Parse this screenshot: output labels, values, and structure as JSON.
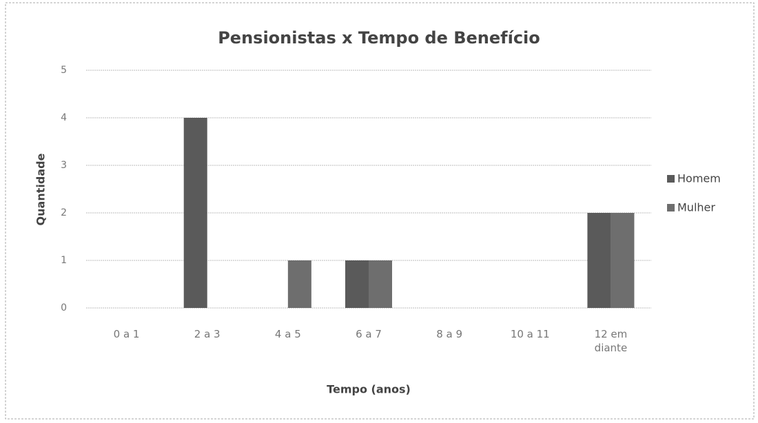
{
  "chart_data": {
    "type": "bar",
    "title": "Pensionistas x Tempo de Benefício",
    "x_label": "Tempo (anos)",
    "y_label": "Quantidade",
    "categories": [
      "0 a 1",
      "2 a 3",
      "4 a 5",
      "6 a 7",
      "8 a 9",
      "10 a 11",
      "12 em diante"
    ],
    "series": [
      {
        "name": "Homem",
        "color": "#5a5a5a",
        "values": [
          0,
          4,
          0,
          1,
          0,
          0,
          2
        ]
      },
      {
        "name": "Mulher",
        "color": "#6e6e6e",
        "values": [
          0,
          0,
          1,
          1,
          0,
          0,
          2
        ]
      }
    ],
    "ylim": [
      0,
      5
    ],
    "yticks": [
      0,
      1,
      2,
      3,
      4,
      5
    ],
    "grid": true,
    "legend": "right"
  }
}
